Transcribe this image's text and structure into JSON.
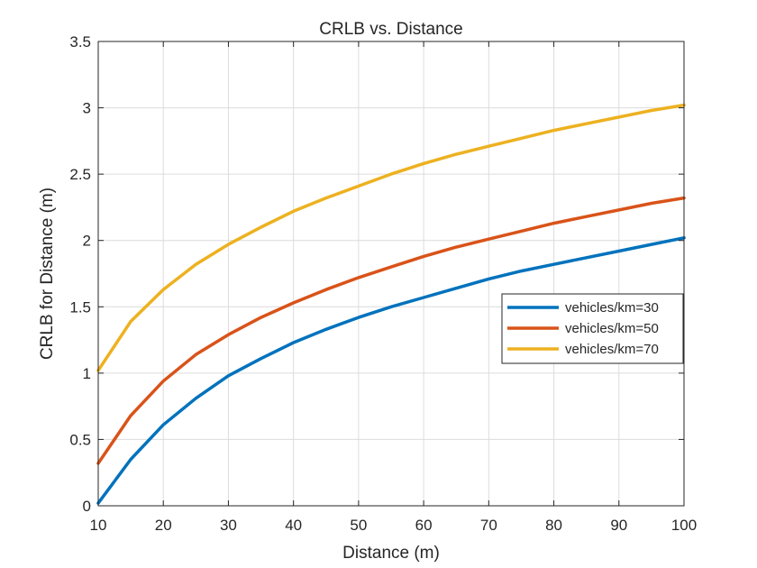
{
  "chart_data": {
    "type": "line",
    "title": "CRLB vs. Distance",
    "xlabel": "Distance (m)",
    "ylabel": "CRLB for Distance (m)",
    "xlim": [
      10,
      100
    ],
    "ylim": [
      0,
      3.5
    ],
    "xticks": [
      10,
      20,
      30,
      40,
      50,
      60,
      70,
      80,
      90,
      100
    ],
    "yticks": [
      0,
      0.5,
      1,
      1.5,
      2,
      2.5,
      3,
      3.5
    ],
    "xtick_labels": [
      "10",
      "20",
      "30",
      "40",
      "50",
      "60",
      "70",
      "80",
      "90",
      "100"
    ],
    "ytick_labels": [
      "0",
      "0.5",
      "1",
      "1.5",
      "2",
      "2.5",
      "3",
      "3.5"
    ],
    "grid": true,
    "legend_position": "right",
    "x": [
      10,
      15,
      20,
      25,
      30,
      35,
      40,
      45,
      50,
      55,
      60,
      65,
      70,
      75,
      80,
      85,
      90,
      95,
      100
    ],
    "series": [
      {
        "name": "vehicles/km=30",
        "color": "#0072bd",
        "values": [
          0.02,
          0.35,
          0.61,
          0.81,
          0.98,
          1.11,
          1.23,
          1.33,
          1.42,
          1.5,
          1.57,
          1.64,
          1.71,
          1.77,
          1.82,
          1.87,
          1.92,
          1.97,
          2.02
        ]
      },
      {
        "name": "vehicles/km=50",
        "color": "#d95319",
        "values": [
          0.32,
          0.68,
          0.94,
          1.14,
          1.29,
          1.42,
          1.53,
          1.63,
          1.72,
          1.8,
          1.88,
          1.95,
          2.01,
          2.07,
          2.13,
          2.18,
          2.23,
          2.28,
          2.32
        ]
      },
      {
        "name": "vehicles/km=70",
        "color": "#edb120",
        "values": [
          1.02,
          1.39,
          1.63,
          1.82,
          1.97,
          2.1,
          2.22,
          2.32,
          2.41,
          2.5,
          2.58,
          2.65,
          2.71,
          2.77,
          2.83,
          2.88,
          2.93,
          2.98,
          3.02
        ]
      }
    ]
  }
}
